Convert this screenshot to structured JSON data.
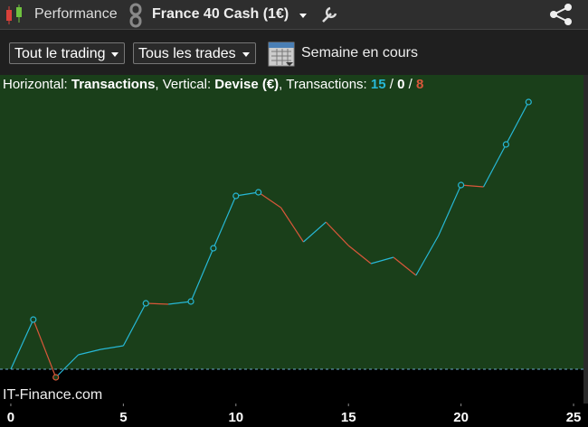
{
  "toolbar": {
    "title": "Performance",
    "instrument": "France 40 Cash (1€)"
  },
  "filters": {
    "trading": "Tout le trading",
    "trades": "Tous les trades",
    "period": "Semaine en cours"
  },
  "info": {
    "h_label": "Horizontal:",
    "h_value": "Transactions",
    "v_label": ", Vertical:",
    "v_value": "Devise (€)",
    "count_label": ", Transactions:",
    "wins": 15,
    "separator": "/",
    "neutral": 0,
    "losses": 8
  },
  "watermark": "IT-Finance.com",
  "chart_data": {
    "type": "line",
    "x": [
      0,
      1,
      2,
      3,
      4,
      5,
      6,
      7,
      8,
      9,
      10,
      11,
      12,
      13,
      14,
      15,
      16,
      17,
      18,
      19,
      20,
      21,
      22,
      23
    ],
    "values": [
      0,
      5.5,
      -0.9,
      1.6,
      2.2,
      2.6,
      7.3,
      7.2,
      7.5,
      13.4,
      19.2,
      19.6,
      17.9,
      14.1,
      16.3,
      13.7,
      11.7,
      12.4,
      10.4,
      14.8,
      20.4,
      20.2,
      24.9,
      29.6
    ],
    "up_color": "#27b8d6",
    "down_color": "#d9573a",
    "xlim": [
      -0.48,
      25.44
    ],
    "xticks": [
      0,
      5,
      10,
      15,
      20,
      25
    ],
    "ylim": [
      -3.8,
      32.6
    ]
  }
}
